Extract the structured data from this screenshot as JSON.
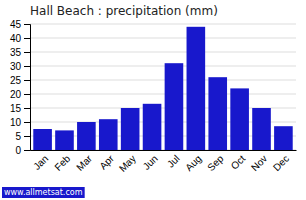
{
  "chart_data": {
    "type": "bar",
    "title": "Hall Beach : precipitation (mm)",
    "categories": [
      "Jan",
      "Feb",
      "Mar",
      "Apr",
      "May",
      "Jun",
      "Jul",
      "Aug",
      "Sep",
      "Oct",
      "Nov",
      "Dec"
    ],
    "values": [
      7.5,
      7.0,
      10.0,
      11.0,
      15.0,
      16.5,
      31.0,
      44.0,
      26.0,
      22.0,
      15.0,
      8.5
    ],
    "color": "#1818cc",
    "ylim": [
      0,
      45
    ],
    "yticks": [
      0,
      5,
      10,
      15,
      20,
      25,
      30,
      35,
      40,
      45
    ],
    "grid": true,
    "annotations": [
      "www.allmetsat.com"
    ]
  }
}
